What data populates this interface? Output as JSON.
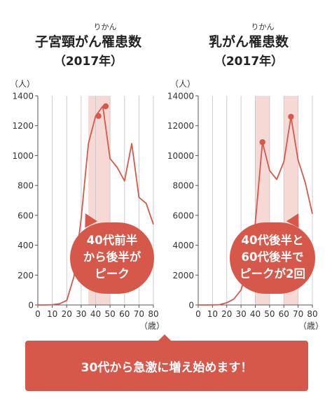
{
  "colors": {
    "line": "#d6584a",
    "highlight": "#f3cbc6",
    "callout": "#d6584a",
    "axis": "#555555",
    "grid": "#cccccc"
  },
  "chart_data": [
    {
      "type": "line",
      "title_ruby": "りかん",
      "title": "子宮頸がん罹患数",
      "subtitle": "（2017年）",
      "ylabel": "（人）",
      "xlabel": "（歳）",
      "xlim": [
        0,
        80
      ],
      "ylim": [
        0,
        1400
      ],
      "xticks": [
        "0",
        "10",
        "20",
        "30",
        "40",
        "50",
        "60",
        "70",
        "80"
      ],
      "yticks": [
        "0",
        "200",
        "400",
        "600",
        "800",
        "1000",
        "1200",
        "1400"
      ],
      "x": [
        0,
        5,
        10,
        15,
        20,
        25,
        30,
        35,
        40,
        45,
        50,
        55,
        60,
        65,
        70,
        75,
        80
      ],
      "values": [
        0,
        0,
        2,
        8,
        30,
        190,
        580,
        1080,
        1265,
        1330,
        980,
        920,
        830,
        1080,
        720,
        680,
        540
      ],
      "highlight_ranges": [
        [
          35,
          50
        ]
      ],
      "markers": [
        [
          42,
          1265
        ],
        [
          47,
          1330
        ]
      ],
      "callout": [
        "40代前半",
        "から後半が",
        "ピーク"
      ]
    },
    {
      "type": "line",
      "title_ruby": "りかん",
      "title": "乳がん罹患数",
      "subtitle": "（2017年）",
      "ylabel": "（人）",
      "xlabel": "（歳）",
      "xlim": [
        0,
        80
      ],
      "ylim": [
        0,
        14000
      ],
      "xticks": [
        "0",
        "10",
        "20",
        "30",
        "40",
        "50",
        "60",
        "70",
        "80"
      ],
      "yticks": [
        "0",
        "2000",
        "4000",
        "6000",
        "8000",
        "10000",
        "12000",
        "14000"
      ],
      "x": [
        0,
        5,
        10,
        15,
        20,
        25,
        30,
        35,
        40,
        45,
        50,
        55,
        60,
        65,
        70,
        75,
        80
      ],
      "values": [
        0,
        0,
        5,
        20,
        150,
        400,
        1000,
        2500,
        5500,
        10900,
        9000,
        8400,
        9600,
        12600,
        9700,
        8200,
        6100
      ],
      "highlight_ranges": [
        [
          40,
          50
        ],
        [
          60,
          70
        ]
      ],
      "markers": [
        [
          45,
          10900
        ],
        [
          65,
          12600
        ]
      ],
      "callout": [
        "40代後半と",
        "60代後半で",
        "ピークが2回"
      ]
    }
  ],
  "banner": {
    "text": "30代から急激に増え始めます！"
  }
}
